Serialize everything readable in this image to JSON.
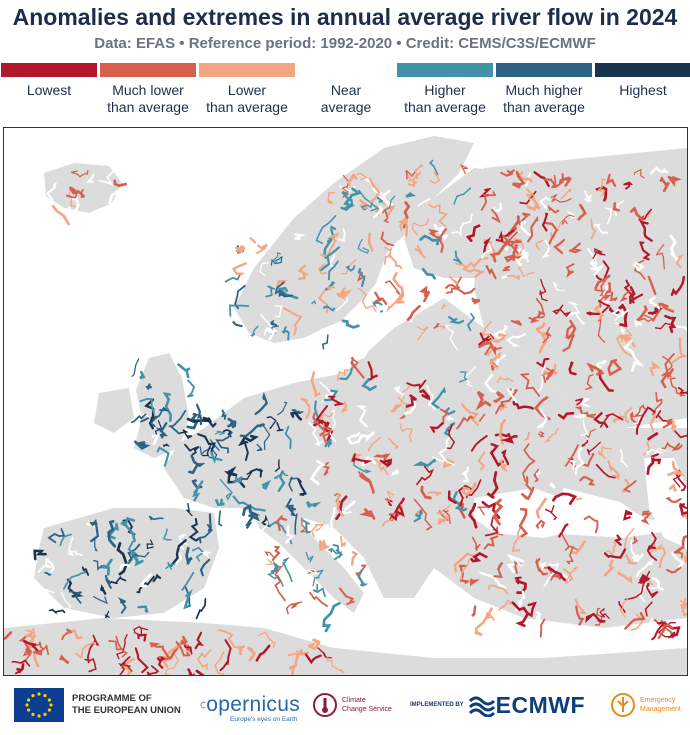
{
  "header": {
    "title": "Anomalies and extremes in annual average river flow in 2024",
    "subtitle": "Data: EFAS • Reference period: 1992-2020 • Credit: CEMS/C3S/ECMWF"
  },
  "legend": {
    "items": [
      {
        "line1": "Lowest",
        "line2": "",
        "color": "#b2182b"
      },
      {
        "line1": "Much lower",
        "line2": "than average",
        "color": "#d6604d"
      },
      {
        "line1": "Lower",
        "line2": "than average",
        "color": "#f4a582"
      },
      {
        "line1": "Near",
        "line2": "average",
        "color": "#ffffff"
      },
      {
        "line1": "Higher",
        "line2": "than average",
        "color": "#4393a8"
      },
      {
        "line1": "Much higher",
        "line2": "than average",
        "color": "#2c6385"
      },
      {
        "line1": "Highest",
        "line2": "",
        "color": "#1a3350"
      }
    ]
  },
  "map": {
    "land_color": "#dcdcdc",
    "sea_color": "#ffffff"
  },
  "footer": {
    "eu_line1": "PROGRAMME OF",
    "eu_line2": "THE EUROPEAN UNION",
    "copernicus": "opernicus",
    "copernicus_sub": "Europe's eyes on Earth",
    "c3s_line1": "Climate",
    "c3s_line2": "Change Service",
    "implemented_by": "IMPLEMENTED BY",
    "ecmwf": "ECMWF",
    "em_line1": "Emergency",
    "em_line2": "Management"
  }
}
